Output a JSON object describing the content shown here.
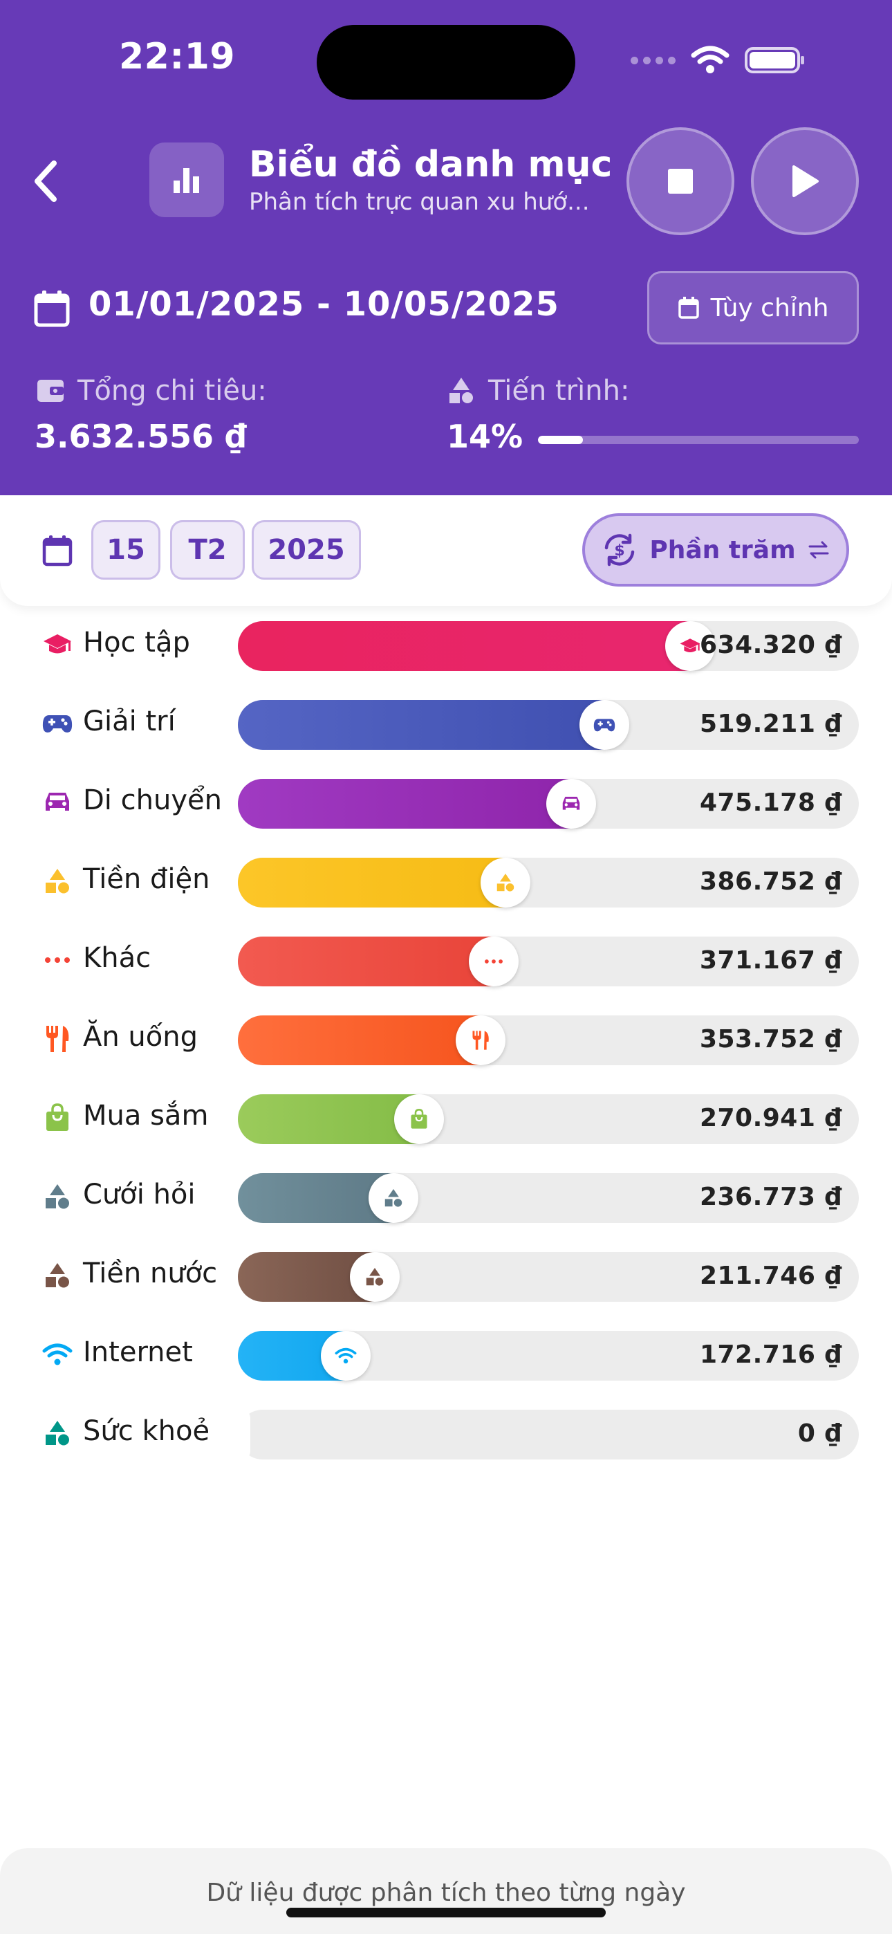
{
  "status_bar": {
    "time": "22:19"
  },
  "header": {
    "title": "Biểu đồ danh mục",
    "subtitle": "Phân tích trực quan xu hướ...",
    "date_range": "01/01/2025 - 10/05/2025",
    "custom_label": "Tùy chỉnh",
    "total_label": "Tổng chi tiêu:",
    "total_value": "3.632.556 ₫",
    "progress_label": "Tiến trình:",
    "progress_value": "14%",
    "progress_fraction": 0.14
  },
  "filters": {
    "day": "15",
    "month": "T2",
    "year": "2025",
    "mode_label": "Phần trăm"
  },
  "categories": [
    {
      "name": "Học tập",
      "amount": "634.320 ₫",
      "value": 634320,
      "icon": "graduation-cap-icon",
      "color": "#e91e63",
      "gradient": [
        "#e9245f",
        "#e8266f"
      ]
    },
    {
      "name": "Giải trí",
      "amount": "519.211 ₫",
      "value": 519211,
      "icon": "gamepad-icon",
      "color": "#3f51b5",
      "gradient": [
        "#5565c4",
        "#3f4fb0"
      ]
    },
    {
      "name": "Di chuyển",
      "amount": "475.178 ₫",
      "value": 475178,
      "icon": "car-icon",
      "color": "#9c27b0",
      "gradient": [
        "#a03ac2",
        "#8e24aa"
      ]
    },
    {
      "name": "Tiền điện",
      "amount": "386.752 ₫",
      "value": 386752,
      "icon": "shapes-icon",
      "color": "#fbc02d",
      "gradient": [
        "#fcc628",
        "#f6bb14"
      ]
    },
    {
      "name": "Khác",
      "amount": "371.167 ₫",
      "value": 371167,
      "icon": "more-dots-icon",
      "color": "#f44336",
      "gradient": [
        "#f25a50",
        "#e84338"
      ]
    },
    {
      "name": "Ăn uống",
      "amount": "353.752 ₫",
      "value": 353752,
      "icon": "fork-knife-icon",
      "color": "#ff5722",
      "gradient": [
        "#ff6f3d",
        "#f5531c"
      ]
    },
    {
      "name": "Mua sắm",
      "amount": "270.941 ₫",
      "value": 270941,
      "icon": "shopping-bag-icon",
      "color": "#8bc34a",
      "gradient": [
        "#9bcb5b",
        "#82bb45"
      ]
    },
    {
      "name": "Cưới hỏi",
      "amount": "236.773 ₫",
      "value": 236773,
      "icon": "shapes-icon",
      "color": "#607d8b",
      "gradient": [
        "#71909c",
        "#5c7784"
      ]
    },
    {
      "name": "Tiền nước",
      "amount": "211.746 ₫",
      "value": 211746,
      "icon": "shapes-icon",
      "color": "#795548",
      "gradient": [
        "#8a6657",
        "#6d4c41"
      ]
    },
    {
      "name": "Internet",
      "amount": "172.716 ₫",
      "value": 172716,
      "icon": "wifi-icon",
      "color": "#03a9f4",
      "gradient": [
        "#24b3f6",
        "#0ea5ee"
      ]
    },
    {
      "name": "Sức khoẻ",
      "amount": "0 ₫",
      "value": 0,
      "icon": "shapes-icon",
      "color": "#009688",
      "gradient": [
        "#009688",
        "#009688"
      ]
    }
  ],
  "footer": {
    "note": "Dữ liệu được phân tích theo từng ngày"
  }
}
